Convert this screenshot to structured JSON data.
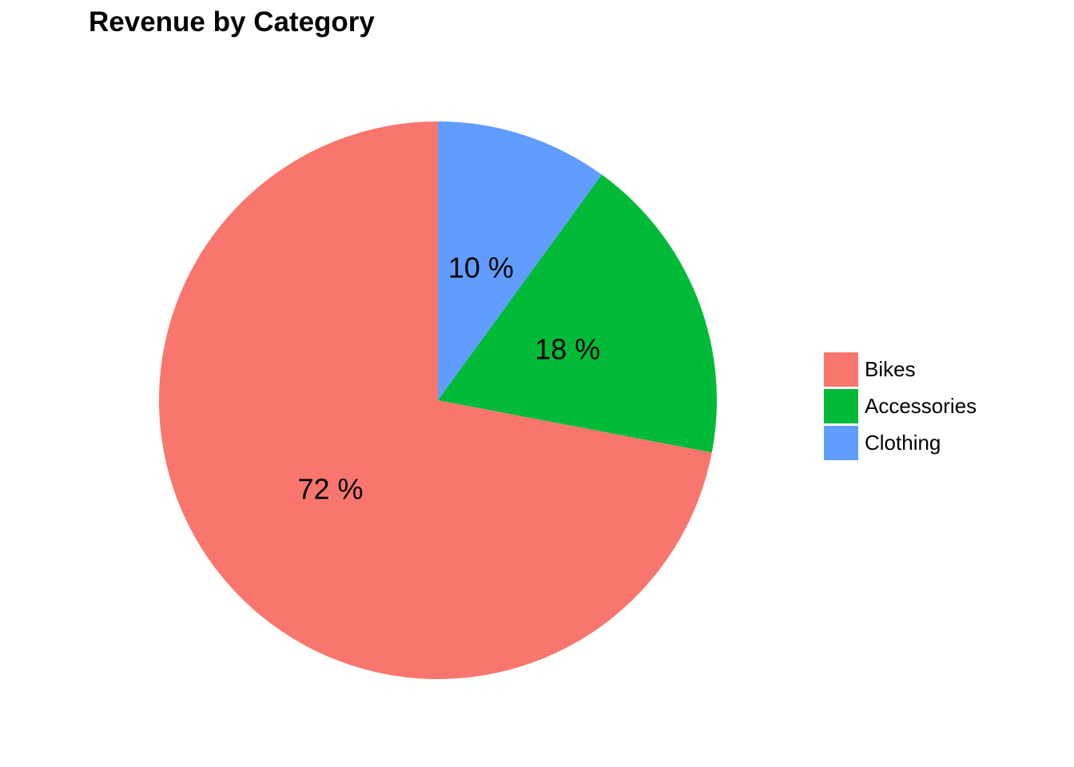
{
  "chart_data": {
    "type": "pie",
    "title": "Revenue by Category",
    "categories": [
      "Bikes",
      "Accessories",
      "Clothing"
    ],
    "values": [
      72,
      18,
      10
    ],
    "labels": [
      "72 %",
      "18 %",
      "10 %"
    ],
    "colors": [
      "#F8766D",
      "#00BA38",
      "#619CFF"
    ],
    "start": "12 o'clock",
    "direction": "counter-clockwise from Bikes; clockwise order Clothing, Accessories, Bikes",
    "legend_position": "right"
  }
}
